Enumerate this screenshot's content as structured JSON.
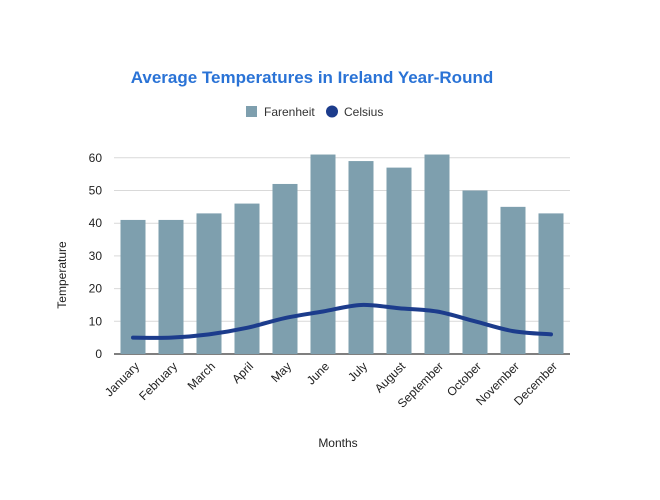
{
  "chart_data": {
    "type": "bar",
    "title": "Average Temperatures in Ireland Year-Round",
    "xlabel": "Months",
    "ylabel": "Temperature",
    "ylim": [
      0,
      65
    ],
    "yticks": [
      0,
      10,
      20,
      30,
      40,
      50,
      60
    ],
    "grid": true,
    "legend_position": "top-center",
    "categories": [
      "January",
      "February",
      "March",
      "April",
      "May",
      "June",
      "July",
      "August",
      "September",
      "October",
      "November",
      "December"
    ],
    "series": [
      {
        "name": "Farenheit",
        "type": "bar",
        "color": "#7e9fae",
        "values": [
          41,
          41,
          43,
          46,
          52,
          61,
          59,
          57,
          61,
          50,
          45,
          43
        ]
      },
      {
        "name": "Celsius",
        "type": "line",
        "color": "#1c3c8c",
        "values": [
          5,
          5,
          6,
          8,
          11,
          13,
          15,
          14,
          13,
          10,
          7,
          6
        ]
      }
    ]
  },
  "colors": {
    "title": "#2a73d6",
    "grid": "#d9d9d9",
    "axis": "#333333"
  }
}
